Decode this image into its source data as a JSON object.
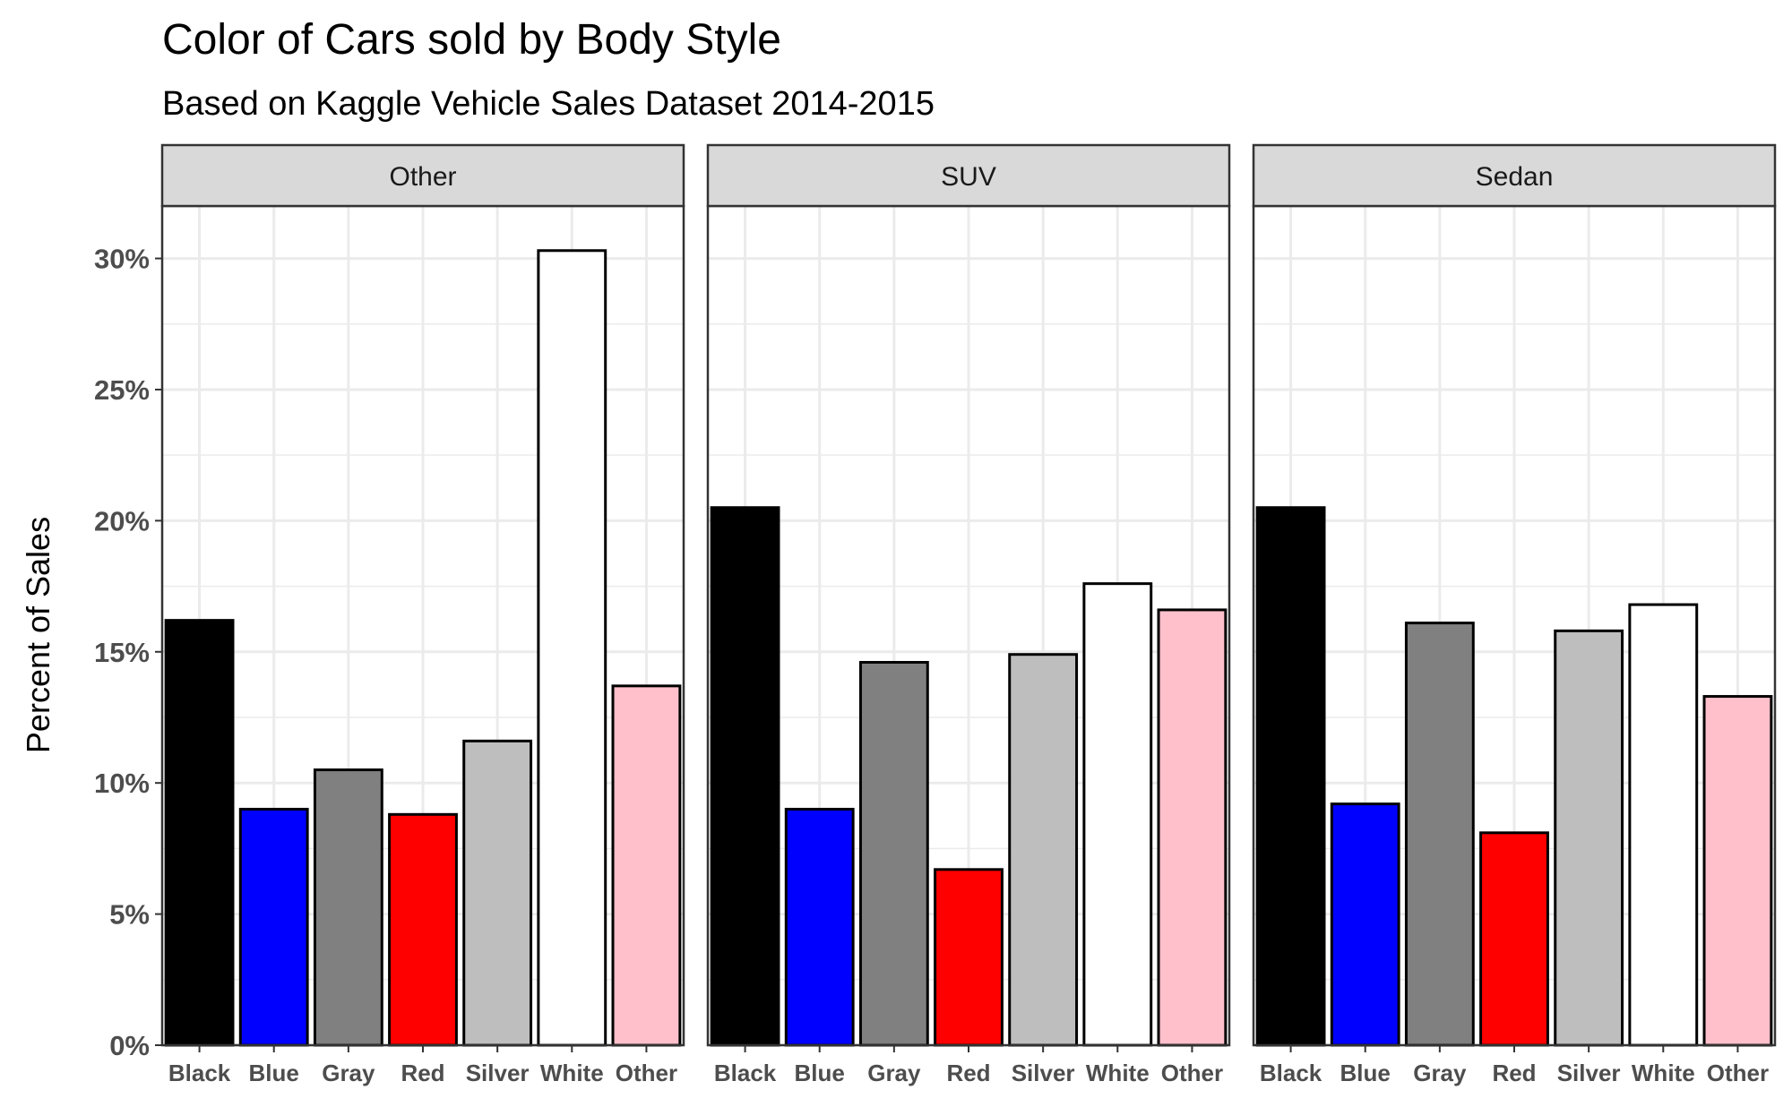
{
  "chart_data": {
    "type": "bar",
    "title": "Color of Cars sold by Body Style",
    "subtitle": "Based on Kaggle Vehicle Sales Dataset 2014-2015",
    "xlabel": "",
    "ylabel": "Percent of Sales",
    "ylim": [
      0,
      32
    ],
    "yticks": [
      0,
      5,
      10,
      15,
      20,
      25,
      30
    ],
    "ytick_labels": [
      "0%",
      "5%",
      "10%",
      "15%",
      "20%",
      "25%",
      "30%"
    ],
    "grid": true,
    "categories": [
      "Black",
      "Blue",
      "Gray",
      "Red",
      "Silver",
      "White",
      "Other"
    ],
    "bar_colors": [
      "#000000",
      "#0000ff",
      "#808080",
      "#ff0000",
      "#bebebe",
      "#ffffff",
      "#ffc0cb"
    ],
    "facets": [
      {
        "name": "Other",
        "values": [
          16.2,
          9.0,
          10.5,
          8.8,
          11.6,
          30.3,
          13.7
        ]
      },
      {
        "name": "SUV",
        "values": [
          20.5,
          9.0,
          14.6,
          6.7,
          14.9,
          17.6,
          16.6
        ]
      },
      {
        "name": "Sedan",
        "values": [
          20.5,
          9.2,
          16.1,
          8.1,
          15.8,
          16.8,
          13.3
        ]
      }
    ]
  }
}
